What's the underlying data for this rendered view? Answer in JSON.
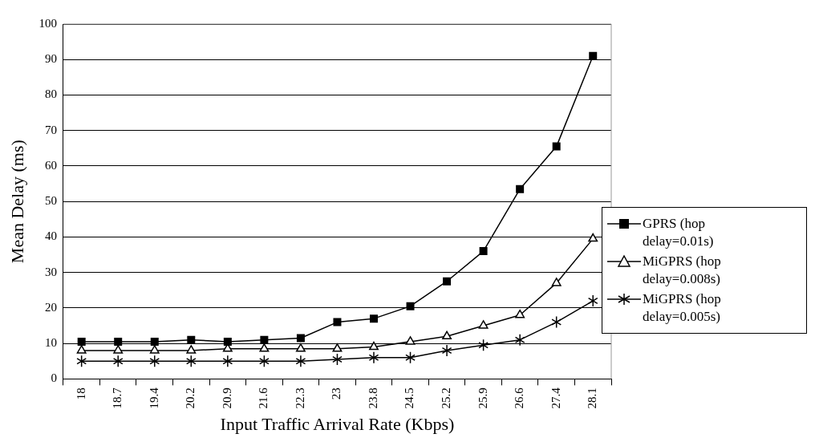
{
  "chart_data": {
    "type": "line",
    "xlabel": "Input Traffic Arrival Rate (Kbps)",
    "ylabel": "Mean Delay (ms)",
    "categories": [
      "18",
      "18.7",
      "19.4",
      "20.2",
      "20.9",
      "21.6",
      "22.3",
      "23",
      "23.8",
      "24.5",
      "25.2",
      "25.9",
      "26.6",
      "27.4",
      "28.1"
    ],
    "series": [
      {
        "name": "GPRS (hop delay=0.01s)",
        "color": "#000000",
        "marker": "square",
        "values": [
          10.5,
          10.5,
          10.5,
          11,
          10.5,
          11,
          11.5,
          16,
          17,
          20.5,
          27.5,
          36,
          53.5,
          65.5,
          91
        ]
      },
      {
        "name": "MiGPRS (hop delay=0.008s)",
        "color": "#000000",
        "marker": "triangle",
        "values": [
          8,
          8,
          8,
          8,
          8.5,
          8.5,
          8.5,
          8.5,
          9,
          10.5,
          12,
          15,
          18,
          27,
          39.5
        ]
      },
      {
        "name": "MiGPRS (hop delay=0.005s)",
        "color": "#000000",
        "marker": "cross",
        "values": [
          5,
          5,
          5,
          5,
          5,
          5,
          5,
          5.5,
          6,
          6,
          8,
          9.5,
          11,
          16,
          22
        ]
      }
    ],
    "ylim": [
      0,
      100
    ],
    "yticks": [
      0,
      10,
      20,
      30,
      40,
      50,
      60,
      70,
      80,
      90,
      100
    ],
    "grid": "y",
    "legend": "right",
    "line_style": "solid"
  }
}
